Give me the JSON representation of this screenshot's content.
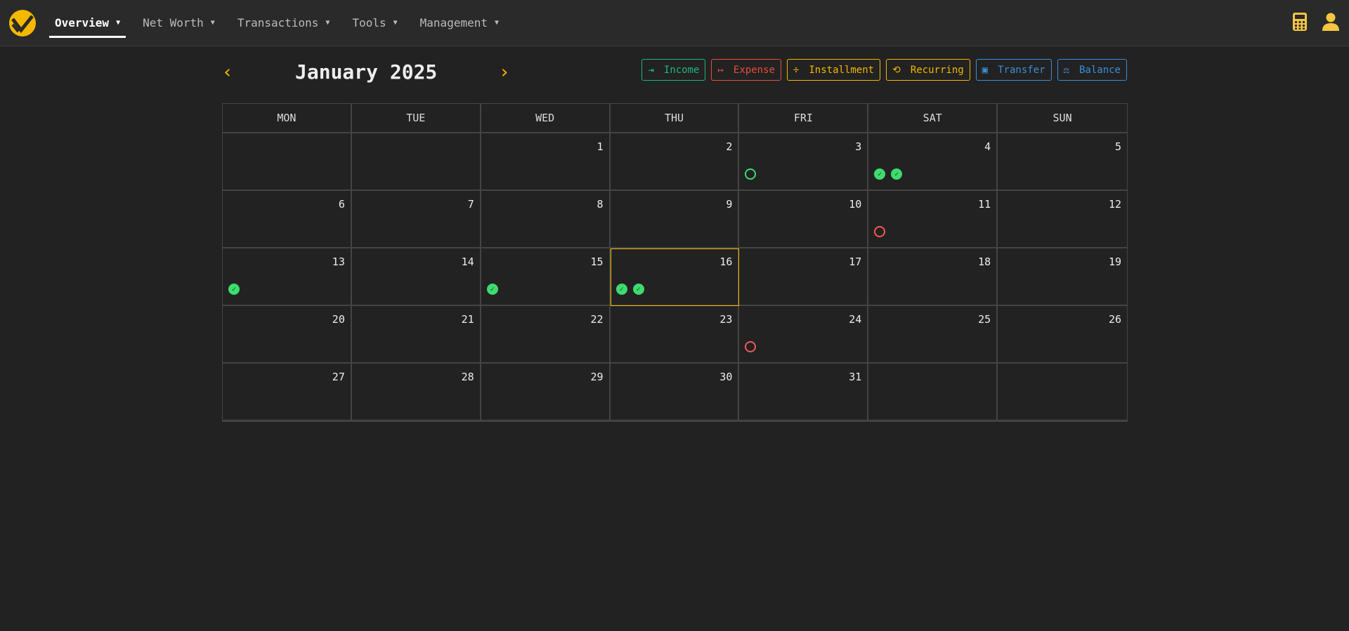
{
  "nav": {
    "items": [
      {
        "label": "Overview",
        "active": true
      },
      {
        "label": "Net Worth"
      },
      {
        "label": "Transactions"
      },
      {
        "label": "Tools"
      },
      {
        "label": "Management"
      }
    ],
    "right_icons": [
      "calculator-icon",
      "user-icon"
    ]
  },
  "calendar": {
    "title": "January 2025",
    "weekdays": [
      "MON",
      "TUE",
      "WED",
      "THU",
      "FRI",
      "SAT",
      "SUN"
    ],
    "actions": [
      {
        "label": "Income",
        "color": "#1fb67a",
        "icon": "sign-in-icon"
      },
      {
        "label": "Expense",
        "color": "#e84c3d",
        "icon": "sign-out-icon"
      },
      {
        "label": "Installment",
        "color": "#f5b800",
        "icon": "divide-icon"
      },
      {
        "label": "Recurring",
        "color": "#f5b800",
        "icon": "repeat-icon"
      },
      {
        "label": "Transfer",
        "color": "#3a8fd9",
        "icon": "money-transfer-icon"
      },
      {
        "label": "Balance",
        "color": "#3a8fd9",
        "icon": "scale-balance-icon"
      }
    ],
    "today": 16,
    "first_weekday_offset": 2,
    "days_in_month": 31,
    "events": {
      "3": [
        "pending-income"
      ],
      "4": [
        "done",
        "done"
      ],
      "11": [
        "pending-expense"
      ],
      "13": [
        "done"
      ],
      "15": [
        "done"
      ],
      "16": [
        "done",
        "done"
      ],
      "24": [
        "pending-expense"
      ]
    }
  }
}
